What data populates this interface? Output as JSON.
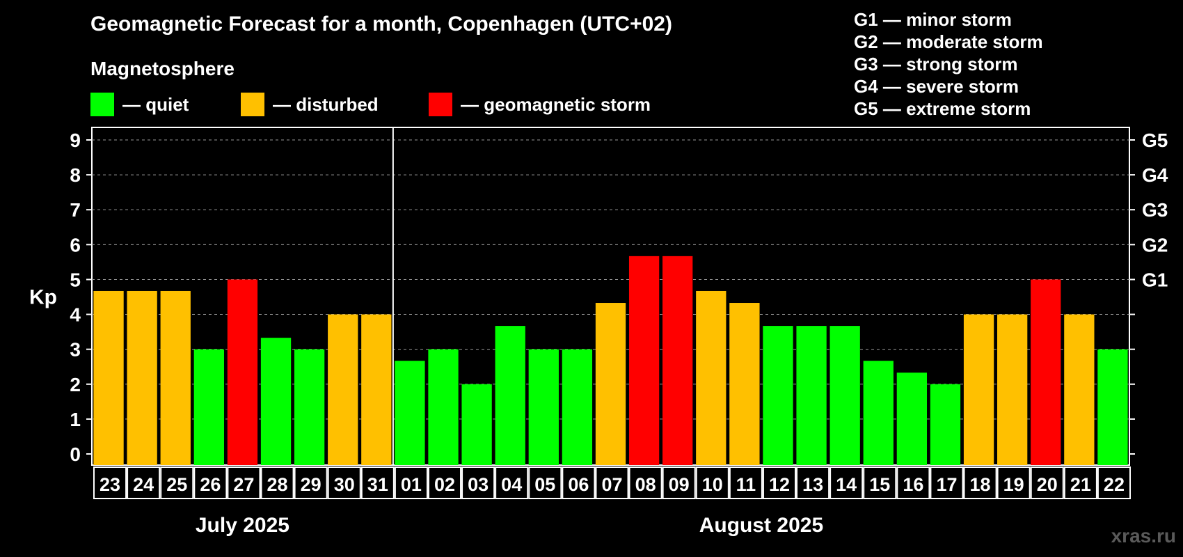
{
  "title": "Geomagnetic Forecast for a month, Copenhagen (UTC+02)",
  "magnetosphere_label": "Magnetosphere",
  "legend": [
    {
      "label": "— quiet",
      "color": "#00ff00"
    },
    {
      "label": "— disturbed",
      "color": "#ffc000"
    },
    {
      "label": "— geomagnetic storm",
      "color": "#ff0000"
    }
  ],
  "storm_scale": [
    "G1 — minor storm",
    "G2 — moderate storm",
    "G3 — strong storm",
    "G4 — severe storm",
    "G5 — extreme storm"
  ],
  "watermark": "xras.ru",
  "chart_data": {
    "type": "bar",
    "ylabel": "Kp",
    "ylim": [
      0,
      9
    ],
    "yticks": [
      0,
      1,
      2,
      3,
      4,
      5,
      6,
      7,
      8,
      9
    ],
    "right_axis_labels": [
      {
        "value": 5,
        "label": "G1"
      },
      {
        "value": 6,
        "label": "G2"
      },
      {
        "value": 7,
        "label": "G3"
      },
      {
        "value": 8,
        "label": "G4"
      },
      {
        "value": 9,
        "label": "G5"
      }
    ],
    "grid": "horizontal dashed",
    "categories": [
      "23",
      "24",
      "25",
      "26",
      "27",
      "28",
      "29",
      "30",
      "31",
      "01",
      "02",
      "03",
      "04",
      "05",
      "06",
      "07",
      "08",
      "09",
      "10",
      "11",
      "12",
      "13",
      "14",
      "15",
      "16",
      "17",
      "18",
      "19",
      "20",
      "21",
      "22"
    ],
    "values": [
      4.67,
      4.67,
      4.67,
      3,
      5,
      3.33,
      3,
      4,
      4,
      2.67,
      3,
      2,
      3.67,
      3,
      3,
      4.33,
      5.67,
      5.67,
      4.67,
      4.33,
      3.67,
      3.67,
      3.67,
      2.67,
      2.33,
      2,
      4,
      4,
      5,
      4,
      3
    ],
    "status": [
      "disturbed",
      "disturbed",
      "disturbed",
      "quiet",
      "storm",
      "quiet",
      "quiet",
      "disturbed",
      "disturbed",
      "quiet",
      "quiet",
      "quiet",
      "quiet",
      "quiet",
      "quiet",
      "disturbed",
      "storm",
      "storm",
      "disturbed",
      "disturbed",
      "quiet",
      "quiet",
      "quiet",
      "quiet",
      "quiet",
      "quiet",
      "disturbed",
      "disturbed",
      "storm",
      "disturbed",
      "quiet"
    ],
    "status_colors": {
      "quiet": "#00ff00",
      "disturbed": "#ffc000",
      "storm": "#ff0000"
    },
    "months": [
      {
        "label": "July 2025",
        "days": 9
      },
      {
        "label": "August 2025",
        "days": 22
      }
    ]
  }
}
